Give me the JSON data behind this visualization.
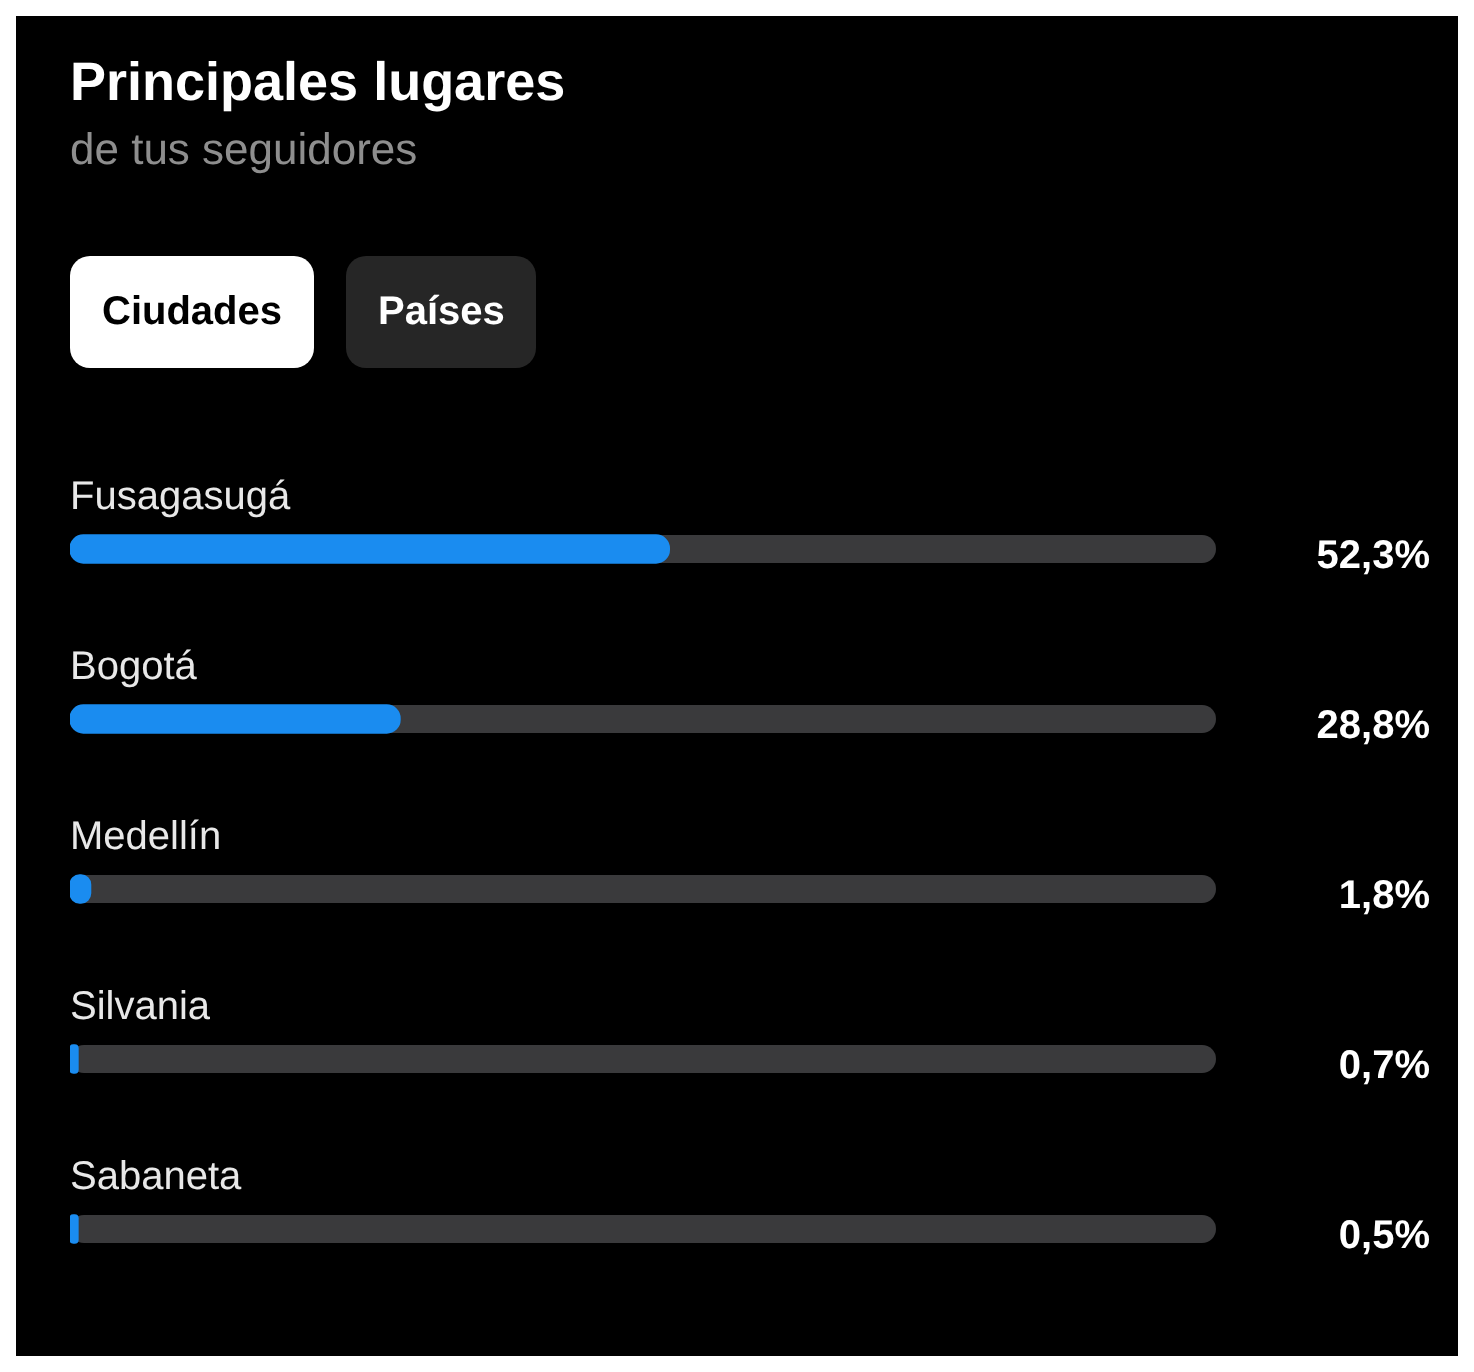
{
  "chart_data": {
    "type": "bar",
    "orientation": "horizontal",
    "title": "Principales lugares",
    "subtitle": "de tus seguidores",
    "annotations": [
      "Ciudades",
      "Países"
    ],
    "categories": [
      "Fusagasugá",
      "Bogotá",
      "Medellín",
      "Silvania",
      "Sabaneta"
    ],
    "values": [
      52.3,
      28.8,
      1.8,
      0.7,
      0.5
    ],
    "value_labels": [
      "52,3%",
      "28,8%",
      "1,8%",
      "0,7%",
      "0,5%"
    ],
    "color": "#1a8cf0",
    "xlim": [
      0,
      100
    ],
    "tick_labels": false,
    "legend": false
  }
}
